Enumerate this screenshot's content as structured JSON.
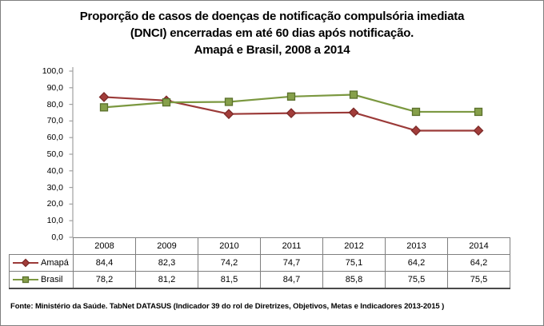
{
  "title": "Proporção de casos de doenças de notificação compulsória imediata\n(DNCI) encerradas em até 60 dias após notificação.\nAmapá e Brasil, 2008 a 2014",
  "footer": "Fonte: Ministério da Saúde. TabNet DATASUS (Indicador 39 do rol de Diretrizes, Objetivos, Metas e Indicadores 2013-2015 )",
  "colors": {
    "axis": "#a0a0a0",
    "table_border": "#7f7f7f",
    "amapa": "#9B3A38",
    "brasil": "#7B9840"
  },
  "chart_data": {
    "type": "line",
    "title": "Proporção de casos de doenças de notificação compulsória imediata (DNCI) encerradas em até 60 dias após notificação. Amapá e Brasil, 2008 a 2014",
    "categories": [
      "2008",
      "2009",
      "2010",
      "2011",
      "2012",
      "2013",
      "2014"
    ],
    "series": [
      {
        "name": "Amapá",
        "values": [
          84.4,
          82.3,
          74.2,
          74.7,
          75.1,
          64.2,
          64.2
        ],
        "display": [
          "84,4",
          "82,3",
          "74,2",
          "74,7",
          "75,1",
          "64,2",
          "64,2"
        ],
        "color": "#9B3A38",
        "marker": "diamond",
        "marker_fill": "#A23D3A",
        "marker_stroke": "#7C2A28"
      },
      {
        "name": "Brasil",
        "values": [
          78.2,
          81.2,
          81.5,
          84.7,
          85.8,
          75.5,
          75.5
        ],
        "display": [
          "78,2",
          "81,2",
          "81,5",
          "84,7",
          "85,8",
          "75,5",
          "75,5"
        ],
        "color": "#7B9840",
        "marker": "square",
        "marker_fill": "#86A04A",
        "marker_stroke": "#5A702C"
      }
    ],
    "xlabel": "",
    "ylabel": "",
    "ylim": [
      0,
      100
    ],
    "yticks": [
      {
        "label": "100,0",
        "value": 100
      },
      {
        "label": "90,0",
        "value": 90
      },
      {
        "label": "80,0",
        "value": 80
      },
      {
        "label": "70,0",
        "value": 70
      },
      {
        "label": "60,0",
        "value": 60
      },
      {
        "label": "50,0",
        "value": 50
      },
      {
        "label": "40,0",
        "value": 40
      },
      {
        "label": "30,0",
        "value": 30
      },
      {
        "label": "20,0",
        "value": 20
      },
      {
        "label": "10,0",
        "value": 10
      },
      {
        "label": "0,0",
        "value": 0
      }
    ],
    "grid": false,
    "legend_position": "table-left"
  }
}
